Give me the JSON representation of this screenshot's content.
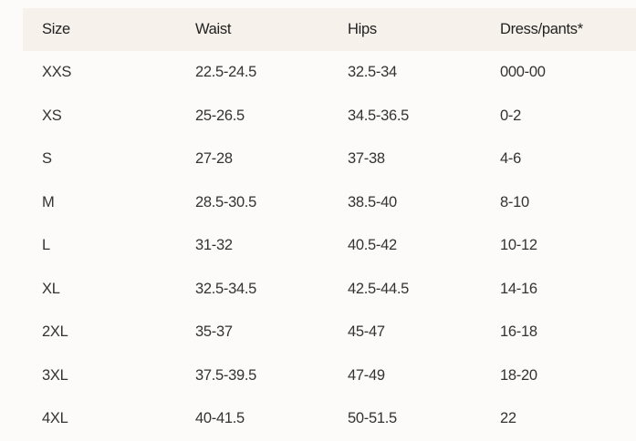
{
  "headers": [
    "Size",
    "Waist",
    "Hips",
    "Dress/pants*"
  ],
  "rows": [
    [
      "XXS",
      "22.5-24.5",
      "32.5-34",
      "000-00"
    ],
    [
      "XS",
      "25-26.5",
      "34.5-36.5",
      "0-2"
    ],
    [
      "S",
      "27-28",
      "37-38",
      "4-6"
    ],
    [
      "M",
      "28.5-30.5",
      "38.5-40",
      "8-10"
    ],
    [
      "L",
      "31-32",
      "40.5-42",
      "10-12"
    ],
    [
      "XL",
      "32.5-34.5",
      "42.5-44.5",
      "14-16"
    ],
    [
      "2XL",
      "35-37",
      "45-47",
      "16-18"
    ],
    [
      "3XL",
      "37.5-39.5",
      "47-49",
      "18-20"
    ],
    [
      "4XL",
      "40-41.5",
      "50-51.5",
      "22"
    ]
  ]
}
